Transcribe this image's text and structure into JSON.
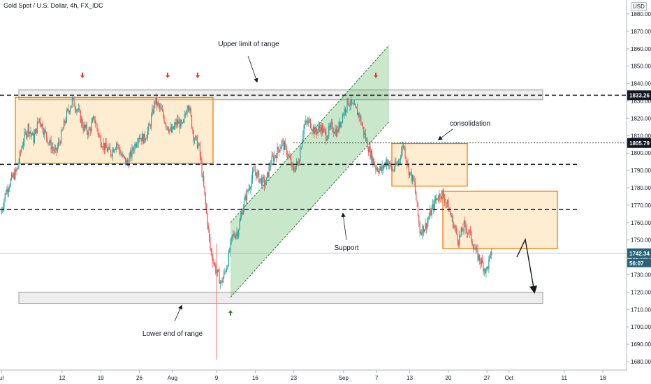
{
  "header": {
    "title": "Gold Spot / U.S. Dollar, 4h, FX_IDC",
    "currency": "USD"
  },
  "chart_data": {
    "type": "candlestick",
    "ylim": [
      1675,
      1893
    ],
    "y_ticks": [
      1880,
      1870,
      1860,
      1850,
      1840,
      1830,
      1820,
      1810,
      1800,
      1790,
      1780,
      1770,
      1760,
      1750,
      1740,
      1730,
      1720,
      1710,
      1700,
      1690,
      1680
    ],
    "x_ticks": [
      {
        "label": "ul",
        "day": 0
      },
      {
        "label": "12",
        "day": 11
      },
      {
        "label": "19",
        "day": 18
      },
      {
        "label": "26",
        "day": 25
      },
      {
        "label": "Aug",
        "day": 31
      },
      {
        "label": "9",
        "day": 39
      },
      {
        "label": "16",
        "day": 46
      },
      {
        "label": "23",
        "day": 53
      },
      {
        "label": "Sep",
        "day": 62
      },
      {
        "label": "7",
        "day": 68
      },
      {
        "label": "13",
        "day": 74
      },
      {
        "label": "20",
        "day": 81
      },
      {
        "label": "27",
        "day": 88
      },
      {
        "label": "Oct",
        "day": 92
      },
      {
        "label": "11",
        "day": 102
      },
      {
        "label": "18",
        "day": 109
      }
    ],
    "price_labels": [
      {
        "value": 1833.26,
        "text": "1833.26",
        "color": "#131722"
      },
      {
        "value": 1805.79,
        "text": "1805.79",
        "color": "#131722"
      },
      {
        "value": 1742.34,
        "text": "1742.34",
        "color": "#26647a"
      }
    ],
    "countdown": "56:07",
    "levels": {
      "dashed": [
        1833.26,
        1793.5,
        1767.5
      ],
      "dotted": 1805.79
    },
    "price_path": [
      [
        0,
        1765
      ],
      [
        1,
        1778
      ],
      [
        2,
        1785
      ],
      [
        3,
        1790
      ],
      [
        4,
        1806
      ],
      [
        5,
        1815
      ],
      [
        6,
        1808
      ],
      [
        7,
        1820
      ],
      [
        8,
        1812
      ],
      [
        9,
        1805
      ],
      [
        10,
        1800
      ],
      [
        11,
        1810
      ],
      [
        12,
        1822
      ],
      [
        13,
        1830
      ],
      [
        14,
        1825
      ],
      [
        15,
        1815
      ],
      [
        16,
        1812
      ],
      [
        17,
        1820
      ],
      [
        18,
        1808
      ],
      [
        19,
        1803
      ],
      [
        20,
        1800
      ],
      [
        21,
        1806
      ],
      [
        22,
        1798
      ],
      [
        23,
        1794
      ],
      [
        24,
        1802
      ],
      [
        25,
        1810
      ],
      [
        26,
        1808
      ],
      [
        27,
        1815
      ],
      [
        28,
        1830
      ],
      [
        29,
        1825
      ],
      [
        30,
        1817
      ],
      [
        31,
        1812
      ],
      [
        32,
        1818
      ],
      [
        33,
        1815
      ],
      [
        34,
        1830
      ],
      [
        35,
        1810
      ],
      [
        36,
        1803
      ],
      [
        37,
        1775
      ],
      [
        38,
        1745
      ],
      [
        39,
        1733
      ],
      [
        40,
        1725
      ],
      [
        41,
        1735
      ],
      [
        42,
        1752
      ],
      [
        43,
        1755
      ],
      [
        44,
        1770
      ],
      [
        45,
        1780
      ],
      [
        46,
        1790
      ],
      [
        47,
        1785
      ],
      [
        48,
        1782
      ],
      [
        49,
        1795
      ],
      [
        50,
        1800
      ],
      [
        51,
        1806
      ],
      [
        52,
        1800
      ],
      [
        53,
        1790
      ],
      [
        54,
        1795
      ],
      [
        55,
        1816
      ],
      [
        56,
        1818
      ],
      [
        57,
        1812
      ],
      [
        58,
        1815
      ],
      [
        59,
        1810
      ],
      [
        60,
        1815
      ],
      [
        61,
        1812
      ],
      [
        62,
        1822
      ],
      [
        63,
        1830
      ],
      [
        64,
        1826
      ],
      [
        65,
        1822
      ],
      [
        66,
        1810
      ],
      [
        67,
        1800
      ],
      [
        68,
        1792
      ],
      [
        69,
        1790
      ],
      [
        70,
        1796
      ],
      [
        71,
        1790
      ],
      [
        72,
        1794
      ],
      [
        73,
        1805
      ],
      [
        74,
        1790
      ],
      [
        75,
        1782
      ],
      [
        76,
        1755
      ],
      [
        77,
        1758
      ],
      [
        78,
        1766
      ],
      [
        79,
        1774
      ],
      [
        80,
        1777
      ],
      [
        81,
        1770
      ],
      [
        82,
        1760
      ],
      [
        83,
        1750
      ],
      [
        84,
        1758
      ],
      [
        85,
        1754
      ],
      [
        86,
        1744
      ],
      [
        87,
        1738
      ],
      [
        88,
        1732
      ],
      [
        89,
        1742.34
      ]
    ],
    "annotations": {
      "upper": "Upper limit of range",
      "lower": "Lower end of range",
      "support": "Support",
      "consolidation": "consolidation"
    }
  }
}
